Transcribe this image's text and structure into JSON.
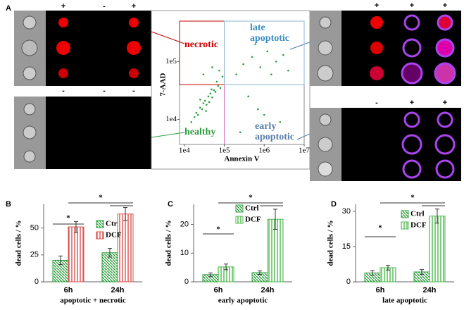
{
  "panel_labels": [
    "A",
    "B",
    "C",
    "D"
  ],
  "micrograph_signs": [
    [
      "+",
      "-",
      "+"
    ],
    [
      "-",
      "-",
      "-"
    ],
    [
      "+",
      "+",
      "+"
    ],
    [
      "-",
      "+",
      "+"
    ]
  ],
  "chart_data": [
    {
      "type": "scatter",
      "xlabel": "Annexin V",
      "ylabel": "7-AAD",
      "log_x": true,
      "log_y": true,
      "color": "#2e9e3e",
      "quadrants": [
        "necrotic",
        "late apoptotic",
        "healthy",
        "early apoptotic"
      ],
      "xlim": [
        7600,
        10000000
      ],
      "ylim": [
        3700,
        500000
      ],
      "xticks": [
        {
          "value": 10000,
          "label": "1e4"
        },
        {
          "value": 100000,
          "label": "1e5"
        },
        {
          "value": 1000000,
          "label": "1e6"
        },
        {
          "value": 10000000,
          "label": "1e7"
        }
      ],
      "yticks": [
        {
          "value": 10000,
          "label": "1e4"
        },
        {
          "value": 100000,
          "label": "1e5"
        }
      ],
      "x": [
        15000,
        18000,
        20000,
        22000,
        25000,
        28000,
        30000,
        33000,
        36000,
        40000,
        45000,
        50000,
        55000,
        60000,
        70000,
        80000,
        25000,
        35000,
        42000,
        48000,
        65000,
        30000,
        50000,
        75000,
        90000,
        200000,
        300000,
        500000,
        800000,
        1200000,
        2000000,
        3000000,
        4000000,
        600000,
        1500000,
        250000,
        700000,
        2500000,
        400000,
        1000000
      ],
      "y": [
        9000,
        11000,
        13000,
        12000,
        16000,
        15000,
        19000,
        21000,
        18000,
        25000,
        28000,
        24000,
        32000,
        30000,
        38000,
        35000,
        22000,
        14000,
        20000,
        33000,
        45000,
        60000,
        80000,
        70000,
        55000,
        60000,
        90000,
        120000,
        80000,
        150000,
        100000,
        130000,
        70000,
        200000,
        60000,
        6000,
        15000,
        9000,
        25000,
        12000
      ]
    },
    {
      "type": "bar",
      "ylabel": "dead cells / %",
      "xlabel": "apoptotic + necrotic",
      "categories": [
        "6h",
        "24h"
      ],
      "ylim": [
        0,
        72
      ],
      "yticks": [
        0,
        25,
        50
      ],
      "annotations": [
        "*",
        "*"
      ],
      "series": [
        {
          "name": "Ctrl",
          "color": "#2e9e3e",
          "values": [
            20,
            27
          ],
          "errors": [
            4,
            4
          ]
        },
        {
          "name": "DCF",
          "color": "#d9534f",
          "values": [
            51,
            63
          ],
          "errors": [
            5,
            6
          ]
        }
      ]
    },
    {
      "type": "bar",
      "ylabel": "dead cells / %",
      "xlabel": "early apoptotic",
      "categories": [
        "6h",
        "24h"
      ],
      "ylim": [
        0,
        27
      ],
      "yticks": [
        0,
        10,
        20
      ],
      "annotations": [
        "*",
        "*"
      ],
      "series": [
        {
          "name": "Ctrl",
          "color": "#2e9e3e",
          "values": [
            2.5,
            3.2
          ],
          "errors": [
            0.6,
            0.6
          ]
        },
        {
          "name": "DCF",
          "color": "#4cb84c",
          "values": [
            5.2,
            21.8
          ],
          "errors": [
            1,
            3.5
          ]
        }
      ]
    },
    {
      "type": "bar",
      "ylabel": "dead cells / %",
      "xlabel": "late apoptotic",
      "categories": [
        "6h",
        "24h"
      ],
      "ylim": [
        0,
        33
      ],
      "yticks": [
        0,
        15,
        30
      ],
      "annotations": [
        "*",
        "*"
      ],
      "series": [
        {
          "name": "Ctrl",
          "color": "#2e9e3e",
          "values": [
            3.8,
            4.2
          ],
          "errors": [
            1,
            1
          ]
        },
        {
          "name": "DCF",
          "color": "#4cb84c",
          "values": [
            6,
            28
          ],
          "errors": [
            1,
            3
          ]
        }
      ]
    }
  ]
}
